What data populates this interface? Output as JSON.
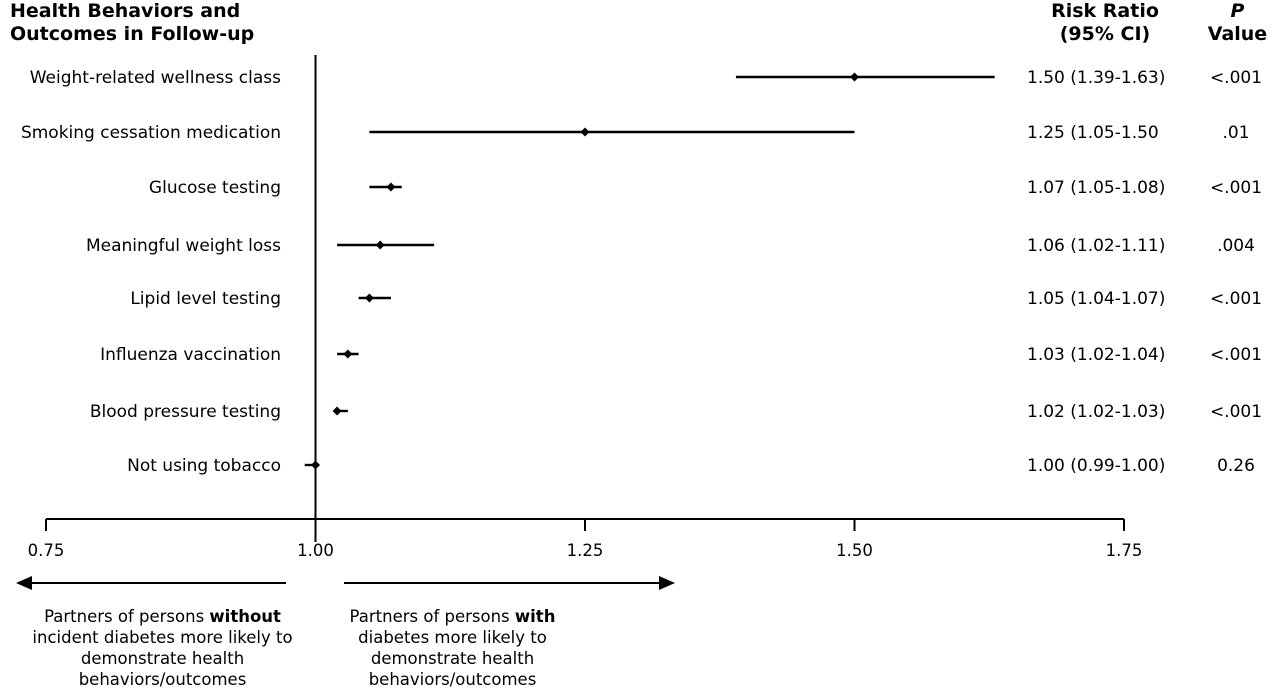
{
  "header": {
    "col_label_line1": "Health Behaviors and",
    "col_label_line2": "Outcomes in Follow-up",
    "rr_line1": "Risk Ratio",
    "rr_line2": "(95% CI)",
    "p_line1": "P",
    "p_line2": "Value"
  },
  "chart_data": {
    "type": "forest",
    "xlim": [
      0.75,
      1.75
    ],
    "reference_line": 1.0,
    "x_ticks": [
      "0.75",
      "1.00",
      "1.25",
      "1.50",
      "1.75"
    ],
    "x_tick_values": [
      0.75,
      1.0,
      1.25,
      1.5,
      1.75
    ],
    "rows": [
      {
        "label": "Weight-related wellness class",
        "rr": 1.5,
        "lo": 1.39,
        "hi": 1.63,
        "rr_text": "1.50 (1.39-1.63)",
        "p_text": "<.001"
      },
      {
        "label": "Smoking cessation medication",
        "rr": 1.25,
        "lo": 1.05,
        "hi": 1.5,
        "rr_text": "1.25 (1.05-1.50",
        "p_text": ".01"
      },
      {
        "label": "Glucose testing",
        "rr": 1.07,
        "lo": 1.05,
        "hi": 1.08,
        "rr_text": "1.07 (1.05-1.08)",
        "p_text": "<.001"
      },
      {
        "label": "Meaningful weight loss",
        "rr": 1.06,
        "lo": 1.02,
        "hi": 1.11,
        "rr_text": "1.06 (1.02-1.11)",
        "p_text": ".004"
      },
      {
        "label": "Lipid level testing",
        "rr": 1.05,
        "lo": 1.04,
        "hi": 1.07,
        "rr_text": "1.05 (1.04-1.07)",
        "p_text": "<.001"
      },
      {
        "label": "Influenza vaccination",
        "rr": 1.03,
        "lo": 1.02,
        "hi": 1.04,
        "rr_text": "1.03 (1.02-1.04)",
        "p_text": "<.001"
      },
      {
        "label": "Blood pressure testing",
        "rr": 1.02,
        "lo": 1.02,
        "hi": 1.03,
        "rr_text": "1.02 (1.02-1.03)",
        "p_text": "<.001"
      },
      {
        "label": "Not using tobacco",
        "rr": 1.0,
        "lo": 0.99,
        "hi": 1.0,
        "rr_text": "1.00 (0.99-1.00)",
        "p_text": "0.26"
      }
    ]
  },
  "notes": {
    "left_pre": "Partners of persons ",
    "left_bold": "without",
    "left_post": " incident diabetes more likely to demonstrate health behaviors/outcomes",
    "right_pre": "Partners of persons ",
    "right_bold": "with",
    "right_post": " diabetes more likely to demonstrate health behaviors/outcomes"
  }
}
